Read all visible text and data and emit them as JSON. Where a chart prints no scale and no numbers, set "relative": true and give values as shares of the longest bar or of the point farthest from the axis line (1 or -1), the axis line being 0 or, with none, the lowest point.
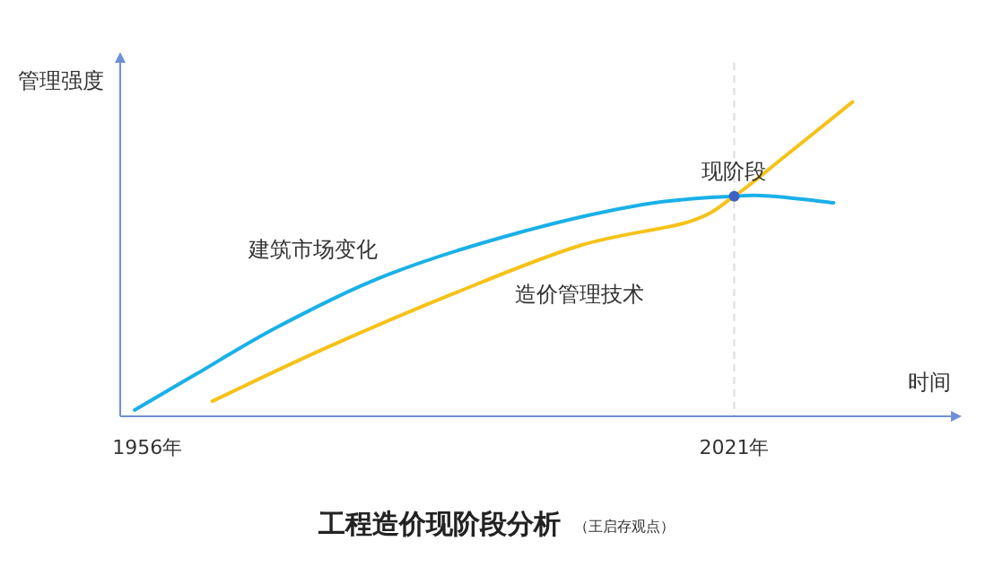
{
  "chart_data": {
    "type": "line",
    "relative": true,
    "title": "工程造价现阶段分析",
    "subtitle": "（王启存观点）",
    "xlabel": "时间",
    "ylabel": "管理强度",
    "xlim": [
      1953,
      2045
    ],
    "xticks": [
      {
        "value": 1956,
        "label": "1956年"
      },
      {
        "value": 2021,
        "label": "2021年"
      }
    ],
    "series": [
      {
        "name": "建筑市场变化",
        "color": "#1ab0e8",
        "x": [
          1954.6,
          1961.4,
          1970.6,
          1982.7,
          1997,
          2011,
          2021,
          2025.3,
          2032
        ],
        "values": [
          0.02,
          0.134,
          0.287,
          0.451,
          0.583,
          0.674,
          0.7,
          0.7,
          0.679
        ]
      },
      {
        "name": "造价管理技术",
        "color": "#f5c218",
        "x": [
          1963.2,
          1975.6,
          1989.8,
          2003.9,
          2016,
          2021,
          2026.7,
          2034.1
        ],
        "values": [
          0.048,
          0.215,
          0.389,
          0.543,
          0.619,
          0.7,
          0.829,
          1.0
        ]
      }
    ],
    "ref_lines": [
      {
        "axis": "x",
        "value": 2021,
        "color": "#dddddd",
        "line_style": "dashed"
      }
    ],
    "annotations": [
      {
        "text": "现阶段",
        "x": 2021,
        "y": 0.7
      }
    ],
    "grid": false,
    "marker": "none",
    "line_style": "solid"
  }
}
